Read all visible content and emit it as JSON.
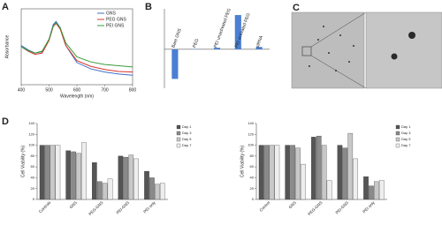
{
  "chart_data": [
    {
      "type": "line",
      "panel": "A",
      "x_label": "Wavelength (nm)",
      "y_label": "Absorbance",
      "x": [
        400,
        425,
        450,
        475,
        500,
        515,
        525,
        540,
        560,
        600,
        650,
        700,
        750,
        800
      ],
      "xlim": [
        400,
        800
      ],
      "xticks": [
        400,
        500,
        600,
        700,
        800
      ],
      "ylim": [
        0,
        1.2
      ],
      "series": [
        {
          "name": "GNS",
          "color": "#3b6fc9",
          "values": [
            0.62,
            0.55,
            0.5,
            0.52,
            0.72,
            0.95,
            1.0,
            0.9,
            0.62,
            0.35,
            0.25,
            0.2,
            0.17,
            0.15
          ]
        },
        {
          "name": "PEG GNS",
          "color": "#d9342b",
          "values": [
            0.6,
            0.53,
            0.48,
            0.5,
            0.7,
            0.92,
            0.97,
            0.88,
            0.62,
            0.38,
            0.29,
            0.24,
            0.21,
            0.2
          ]
        },
        {
          "name": "PEI GNS",
          "color": "#3a9a3a",
          "values": [
            0.6,
            0.54,
            0.5,
            0.53,
            0.72,
            0.93,
            0.98,
            0.9,
            0.66,
            0.44,
            0.36,
            0.32,
            0.3,
            0.28
          ]
        }
      ],
      "legend": "upper right"
    },
    {
      "type": "bar",
      "panel": "B",
      "categories": [
        "Bare GNS",
        "PEG",
        "PEI unactivated PEG",
        "PEI activated PEG",
        "siRNA"
      ],
      "values": [
        -38,
        0.5,
        2,
        44,
        3
      ],
      "color": "#4a7fd4",
      "ylim": [
        -50,
        52
      ]
    },
    {
      "type": "bar",
      "panel": "D",
      "y_label": "Cell Viability (%)",
      "categories": [
        "Controls",
        "GNS",
        "PEG-GNS",
        "PEI-GNS",
        "PEI only"
      ],
      "ylim": [
        0,
        140
      ],
      "yticks": [
        0,
        20,
        40,
        60,
        80,
        100,
        120,
        140
      ],
      "series": [
        {
          "name": "Day 1",
          "color": "#555555",
          "values": [
            100,
            90,
            68,
            80,
            52
          ]
        },
        {
          "name": "Day 3",
          "color": "#8a8a8a",
          "values": [
            100,
            88,
            33,
            78,
            40
          ]
        },
        {
          "name": "Day 5",
          "color": "#c8c8c8",
          "values": [
            100,
            85,
            30,
            82,
            28
          ]
        },
        {
          "name": "Day 7",
          "color": "#eeeeee",
          "values": [
            100,
            105,
            38,
            75,
            30
          ]
        }
      ],
      "legend": "right"
    },
    {
      "type": "bar",
      "y_label": "Cell Viability (%)",
      "categories": [
        "Control",
        "GNS",
        "PEG-GNS",
        "PEI-GNS",
        "PEI only"
      ],
      "ylim": [
        0,
        140
      ],
      "yticks": [
        0,
        20,
        40,
        60,
        80,
        100,
        120,
        140
      ],
      "series": [
        {
          "name": "Day 1",
          "color": "#555555",
          "values": [
            100,
            100,
            115,
            100,
            42
          ]
        },
        {
          "name": "Day 3",
          "color": "#8a8a8a",
          "values": [
            100,
            100,
            117,
            95,
            25
          ]
        },
        {
          "name": "Day 5",
          "color": "#c8c8c8",
          "values": [
            100,
            95,
            100,
            122,
            33
          ]
        },
        {
          "name": "Day 7",
          "color": "#eeeeee",
          "values": [
            100,
            65,
            35,
            75,
            35
          ]
        }
      ],
      "legend": "right"
    }
  ],
  "panel_c": {
    "label": "C"
  }
}
